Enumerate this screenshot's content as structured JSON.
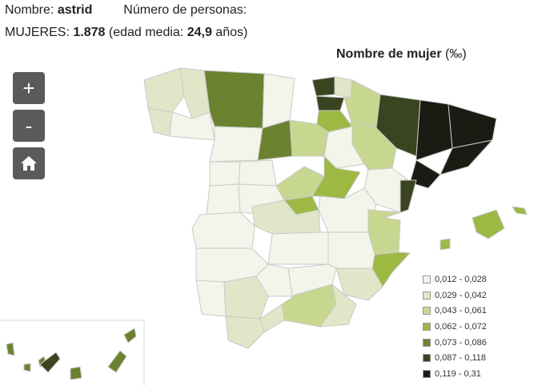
{
  "header": {
    "name_label": "Nombre:",
    "name_value": "astrid",
    "persons_label": "Número de personas:",
    "women_label": "MUJERES:",
    "women_count": "1.878",
    "age_prefix": "(edad media:",
    "age_value": "24,9",
    "age_suffix": "años)"
  },
  "map_title": {
    "text": "Nombre de mujer",
    "unit": "(‰)"
  },
  "controls": {
    "zoom_in": "+",
    "zoom_out": "-",
    "home_icon": "home-icon"
  },
  "legend": [
    {
      "label": "0,012 - 0,028",
      "color": "#f4f5ea"
    },
    {
      "label": "0,029 - 0,042",
      "color": "#e1e6c8"
    },
    {
      "label": "0,043 - 0,061",
      "color": "#c8d790"
    },
    {
      "label": "0,062 - 0,072",
      "color": "#9db843"
    },
    {
      "label": "0,073 - 0,086",
      "color": "#6b8230"
    },
    {
      "label": "0,087 - 0,118",
      "color": "#3a4420"
    },
    {
      "label": "0,119 - 0,31",
      "color": "#1a1c14"
    }
  ],
  "colors": {
    "no_data": "#ffffff",
    "border": "#c9c9c9"
  }
}
